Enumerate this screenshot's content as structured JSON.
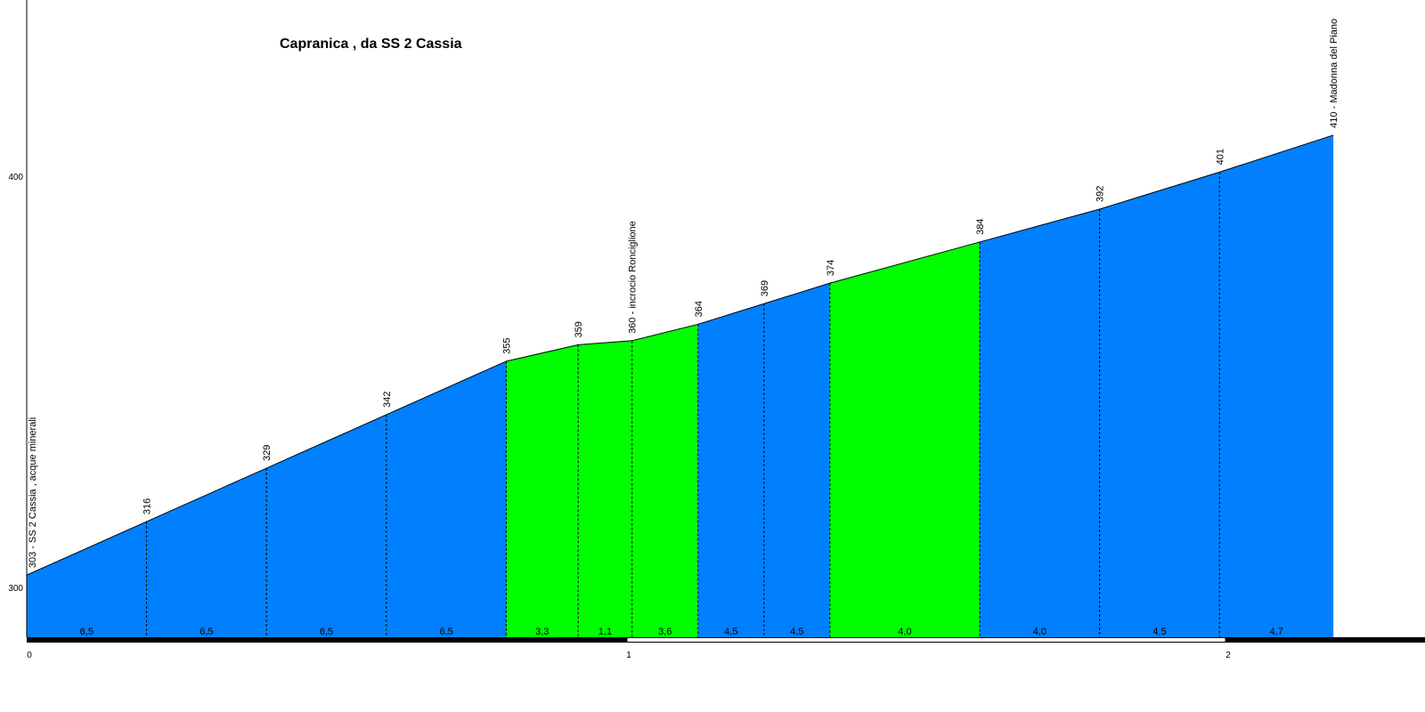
{
  "chart_data": {
    "type": "area",
    "title": "Capranica , da SS 2 Cassia",
    "xlim": [
      0,
      2.3
    ],
    "ylim": [
      285,
      440
    ],
    "x_ticks": [
      "0",
      "1",
      "2"
    ],
    "y_ticks": [
      "300",
      "400"
    ],
    "colors": {
      "steep": "#0080ff",
      "gentle": "#00ff00"
    },
    "points": [
      {
        "x": 0,
        "elev": 303,
        "label": "303 - SS 2 Cassia , acque minerali"
      },
      {
        "x": 0.2,
        "elev": 316,
        "label": "316"
      },
      {
        "x": 0.4,
        "elev": 329,
        "label": "329"
      },
      {
        "x": 0.6,
        "elev": 342,
        "label": "342"
      },
      {
        "x": 0.8,
        "elev": 355,
        "label": "355"
      },
      {
        "x": 0.92,
        "elev": 359,
        "label": "359"
      },
      {
        "x": 1.01,
        "elev": 360,
        "label": "360 - incrocio Ronciglione"
      },
      {
        "x": 1.12,
        "elev": 364,
        "label": "364"
      },
      {
        "x": 1.23,
        "elev": 369,
        "label": "369"
      },
      {
        "x": 1.34,
        "elev": 374,
        "label": "374"
      },
      {
        "x": 1.59,
        "elev": 384,
        "label": "384"
      },
      {
        "x": 1.79,
        "elev": 392,
        "label": "392"
      },
      {
        "x": 1.99,
        "elev": 401,
        "label": "401"
      },
      {
        "x": 2.18,
        "elev": 410,
        "label": "410 - Madonna del Piano"
      }
    ],
    "segments": [
      {
        "gradient": "6,5",
        "color": "#0080ff"
      },
      {
        "gradient": "6,5",
        "color": "#0080ff"
      },
      {
        "gradient": "6,5",
        "color": "#0080ff"
      },
      {
        "gradient": "6,5",
        "color": "#0080ff"
      },
      {
        "gradient": "3,3",
        "color": "#00ff00"
      },
      {
        "gradient": "1,1",
        "color": "#00ff00"
      },
      {
        "gradient": "3,6",
        "color": "#00ff00"
      },
      {
        "gradient": "4,5",
        "color": "#0080ff"
      },
      {
        "gradient": "4,5",
        "color": "#0080ff"
      },
      {
        "gradient": "4,0",
        "color": "#00ff00"
      },
      {
        "gradient": "4,0",
        "color": "#0080ff"
      },
      {
        "gradient": "4,5",
        "color": "#0080ff"
      },
      {
        "gradient": "4,7",
        "color": "#0080ff"
      }
    ]
  }
}
